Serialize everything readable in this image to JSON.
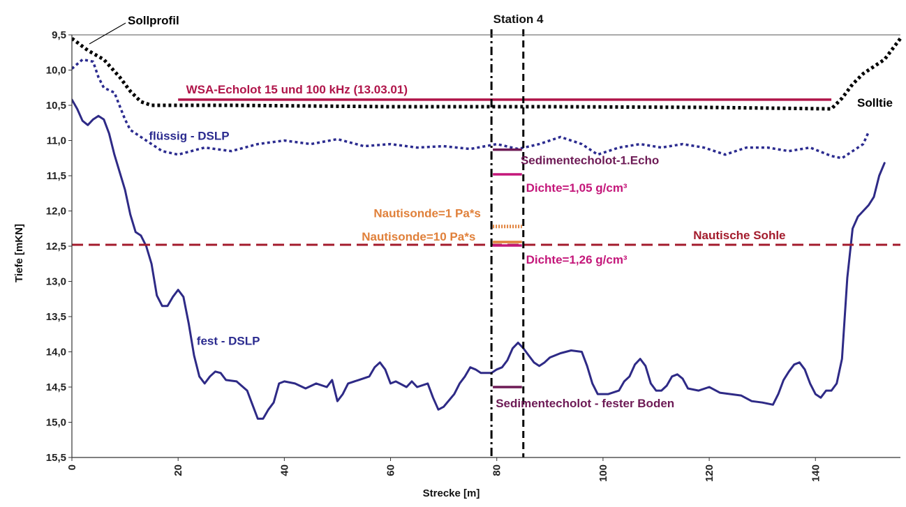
{
  "chart_data": {
    "type": "line",
    "title": "Station 4",
    "xlabel": "Strecke [m]",
    "ylabel": "Tiefe [mKN]",
    "xlim": [
      0,
      156
    ],
    "ylim": [
      9.5,
      15.5
    ],
    "y_inverted": true,
    "grid": false,
    "xticks": [
      0,
      20,
      40,
      60,
      80,
      100,
      120,
      140
    ],
    "xtick_labels": [
      "0",
      "20",
      "40",
      "60",
      "80",
      "100",
      "120",
      "140"
    ],
    "yticks": [
      9.5,
      10.0,
      10.5,
      11.0,
      11.5,
      12.0,
      12.5,
      13.0,
      13.5,
      14.0,
      14.5,
      15.0,
      15.5
    ],
    "ytick_labels": [
      "9,5",
      "10,0",
      "10,5",
      "11,0",
      "11,5",
      "12,0",
      "12,5",
      "13,0",
      "13,5",
      "14,0",
      "14,5",
      "15,0",
      "15,5"
    ],
    "series": [
      {
        "name": "Sollprofil",
        "color": "#000000",
        "style": "dotted",
        "points": [
          [
            0,
            9.55
          ],
          [
            3,
            9.72
          ],
          [
            6,
            9.85
          ],
          [
            9,
            10.1
          ],
          [
            11,
            10.3
          ],
          [
            13,
            10.45
          ],
          [
            15,
            10.5
          ],
          [
            30,
            10.5
          ],
          [
            60,
            10.52
          ],
          [
            90,
            10.52
          ],
          [
            120,
            10.53
          ],
          [
            143,
            10.55
          ],
          [
            145,
            10.4
          ],
          [
            147,
            10.2
          ],
          [
            149,
            10.05
          ],
          [
            151,
            9.95
          ],
          [
            153,
            9.85
          ],
          [
            155,
            9.65
          ],
          [
            156,
            9.55
          ]
        ]
      },
      {
        "name": "flüssig - DSLP",
        "color": "#2b2b8f",
        "style": "dotted",
        "points": [
          [
            0,
            9.98
          ],
          [
            2,
            9.85
          ],
          [
            4,
            9.88
          ],
          [
            5,
            10.1
          ],
          [
            6,
            10.25
          ],
          [
            8,
            10.32
          ],
          [
            10,
            10.7
          ],
          [
            11,
            10.85
          ],
          [
            14,
            11.0
          ],
          [
            17,
            11.15
          ],
          [
            20,
            11.2
          ],
          [
            25,
            11.1
          ],
          [
            30,
            11.15
          ],
          [
            35,
            11.05
          ],
          [
            40,
            11.0
          ],
          [
            45,
            11.05
          ],
          [
            50,
            10.98
          ],
          [
            55,
            11.08
          ],
          [
            60,
            11.05
          ],
          [
            65,
            11.1
          ],
          [
            70,
            11.08
          ],
          [
            75,
            11.12
          ],
          [
            80,
            11.05
          ],
          [
            84,
            11.12
          ],
          [
            88,
            11.05
          ],
          [
            92,
            10.95
          ],
          [
            96,
            11.05
          ],
          [
            99,
            11.2
          ],
          [
            103,
            11.1
          ],
          [
            107,
            11.05
          ],
          [
            111,
            11.1
          ],
          [
            115,
            11.05
          ],
          [
            119,
            11.1
          ],
          [
            123,
            11.2
          ],
          [
            127,
            11.1
          ],
          [
            131,
            11.1
          ],
          [
            135,
            11.15
          ],
          [
            139,
            11.1
          ],
          [
            143,
            11.22
          ],
          [
            145,
            11.25
          ],
          [
            147,
            11.15
          ],
          [
            149,
            11.05
          ],
          [
            150,
            10.88
          ]
        ]
      },
      {
        "name": "fest - DSLP",
        "color": "#2e2a86",
        "style": "solid",
        "points": [
          [
            0,
            10.42
          ],
          [
            1,
            10.55
          ],
          [
            2,
            10.72
          ],
          [
            3,
            10.78
          ],
          [
            4,
            10.7
          ],
          [
            5,
            10.65
          ],
          [
            6,
            10.7
          ],
          [
            7,
            10.9
          ],
          [
            8,
            11.2
          ],
          [
            9,
            11.45
          ],
          [
            10,
            11.7
          ],
          [
            11,
            12.05
          ],
          [
            12,
            12.3
          ],
          [
            13,
            12.35
          ],
          [
            14,
            12.5
          ],
          [
            15,
            12.75
          ],
          [
            16,
            13.2
          ],
          [
            17,
            13.35
          ],
          [
            18,
            13.35
          ],
          [
            19,
            13.22
          ],
          [
            20,
            13.12
          ],
          [
            21,
            13.22
          ],
          [
            22,
            13.6
          ],
          [
            23,
            14.05
          ],
          [
            24,
            14.35
          ],
          [
            25,
            14.45
          ],
          [
            26,
            14.35
          ],
          [
            27,
            14.28
          ],
          [
            28,
            14.3
          ],
          [
            29,
            14.4
          ],
          [
            31,
            14.42
          ],
          [
            33,
            14.55
          ],
          [
            34,
            14.75
          ],
          [
            35,
            14.95
          ],
          [
            36,
            14.95
          ],
          [
            37,
            14.82
          ],
          [
            38,
            14.72
          ],
          [
            39,
            14.45
          ],
          [
            40,
            14.42
          ],
          [
            42,
            14.45
          ],
          [
            44,
            14.52
          ],
          [
            46,
            14.45
          ],
          [
            48,
            14.5
          ],
          [
            49,
            14.4
          ],
          [
            50,
            14.7
          ],
          [
            51,
            14.6
          ],
          [
            52,
            14.45
          ],
          [
            54,
            14.4
          ],
          [
            56,
            14.35
          ],
          [
            57,
            14.22
          ],
          [
            58,
            14.15
          ],
          [
            59,
            14.25
          ],
          [
            60,
            14.45
          ],
          [
            61,
            14.42
          ],
          [
            63,
            14.5
          ],
          [
            64,
            14.42
          ],
          [
            65,
            14.5
          ],
          [
            67,
            14.45
          ],
          [
            68,
            14.65
          ],
          [
            69,
            14.82
          ],
          [
            70,
            14.78
          ],
          [
            72,
            14.6
          ],
          [
            73,
            14.45
          ],
          [
            74,
            14.35
          ],
          [
            75,
            14.22
          ],
          [
            76,
            14.25
          ],
          [
            77,
            14.3
          ],
          [
            78,
            14.3
          ],
          [
            79,
            14.3
          ],
          [
            80,
            14.25
          ],
          [
            81,
            14.22
          ],
          [
            82,
            14.12
          ],
          [
            83,
            13.95
          ],
          [
            84,
            13.87
          ],
          [
            85,
            13.95
          ],
          [
            86,
            14.05
          ],
          [
            87,
            14.15
          ],
          [
            88,
            14.2
          ],
          [
            89,
            14.15
          ],
          [
            90,
            14.08
          ],
          [
            92,
            14.02
          ],
          [
            94,
            13.98
          ],
          [
            96,
            14.0
          ],
          [
            97,
            14.2
          ],
          [
            98,
            14.45
          ],
          [
            99,
            14.6
          ],
          [
            101,
            14.6
          ],
          [
            103,
            14.55
          ],
          [
            104,
            14.42
          ],
          [
            105,
            14.35
          ],
          [
            106,
            14.18
          ],
          [
            107,
            14.1
          ],
          [
            108,
            14.2
          ],
          [
            109,
            14.45
          ],
          [
            110,
            14.55
          ],
          [
            111,
            14.55
          ],
          [
            112,
            14.48
          ],
          [
            113,
            14.35
          ],
          [
            114,
            14.32
          ],
          [
            115,
            14.38
          ],
          [
            116,
            14.52
          ],
          [
            118,
            14.55
          ],
          [
            120,
            14.5
          ],
          [
            122,
            14.58
          ],
          [
            124,
            14.6
          ],
          [
            126,
            14.62
          ],
          [
            128,
            14.7
          ],
          [
            130,
            14.72
          ],
          [
            132,
            14.75
          ],
          [
            133,
            14.6
          ],
          [
            134,
            14.4
          ],
          [
            135,
            14.28
          ],
          [
            136,
            14.18
          ],
          [
            137,
            14.15
          ],
          [
            138,
            14.25
          ],
          [
            139,
            14.45
          ],
          [
            140,
            14.6
          ],
          [
            141,
            14.65
          ],
          [
            142,
            14.55
          ],
          [
            143,
            14.55
          ],
          [
            144,
            14.45
          ],
          [
            145,
            14.1
          ],
          [
            146,
            12.95
          ],
          [
            147,
            12.25
          ],
          [
            148,
            12.08
          ],
          [
            149,
            12.0
          ],
          [
            150,
            11.92
          ],
          [
            151,
            11.8
          ],
          [
            152,
            11.5
          ],
          [
            153,
            11.32
          ]
        ]
      }
    ],
    "reference_lines": [
      {
        "label": "WSA-Echolot 15 und 100 kHz (13.03.01)",
        "y": 10.42,
        "x": [
          20,
          143
        ],
        "color": "#b0154a",
        "style": "solid"
      },
      {
        "label": "Nautische Sohle",
        "y": 12.48,
        "x": [
          0,
          156
        ],
        "color": "#a31b2c",
        "style": "dashed"
      },
      {
        "label": "Station 4",
        "x": 79,
        "color": "#000000",
        "style": "dashdot"
      },
      {
        "label": "",
        "x": 85,
        "color": "#000000",
        "style": "dashed"
      }
    ],
    "station_marks": [
      {
        "label": "Sedimentecholot-1.Echo",
        "y": 11.13,
        "color": "#6d1a55",
        "style": "solid"
      },
      {
        "label": "Dichte=1,05 g/cm³",
        "y": 11.48,
        "color": "#c4177a",
        "style": "solid"
      },
      {
        "label": "Nautisonde=1 Pa*s",
        "y": 12.22,
        "color": "#e0803a",
        "style": "dotted"
      },
      {
        "label": "Nautisonde=10 Pa*s",
        "y": 12.44,
        "color": "#e0803a",
        "style": "solid"
      },
      {
        "label": "Dichte=1,26 g/cm³",
        "y": 12.49,
        "color": "#c4177a",
        "style": "solid"
      },
      {
        "label": "Sedimentecholot - fester Boden",
        "y": 14.5,
        "color": "#6d1a55",
        "style": "solid"
      }
    ],
    "annotations": [
      {
        "text": "Sollprofil",
        "color": "#000000"
      },
      {
        "text": "Solltie",
        "color": "#000000"
      },
      {
        "text": "flüssig - DSLP",
        "color": "#2b2b8f"
      },
      {
        "text": "fest - DSLP",
        "color": "#2b2b8f"
      }
    ]
  }
}
